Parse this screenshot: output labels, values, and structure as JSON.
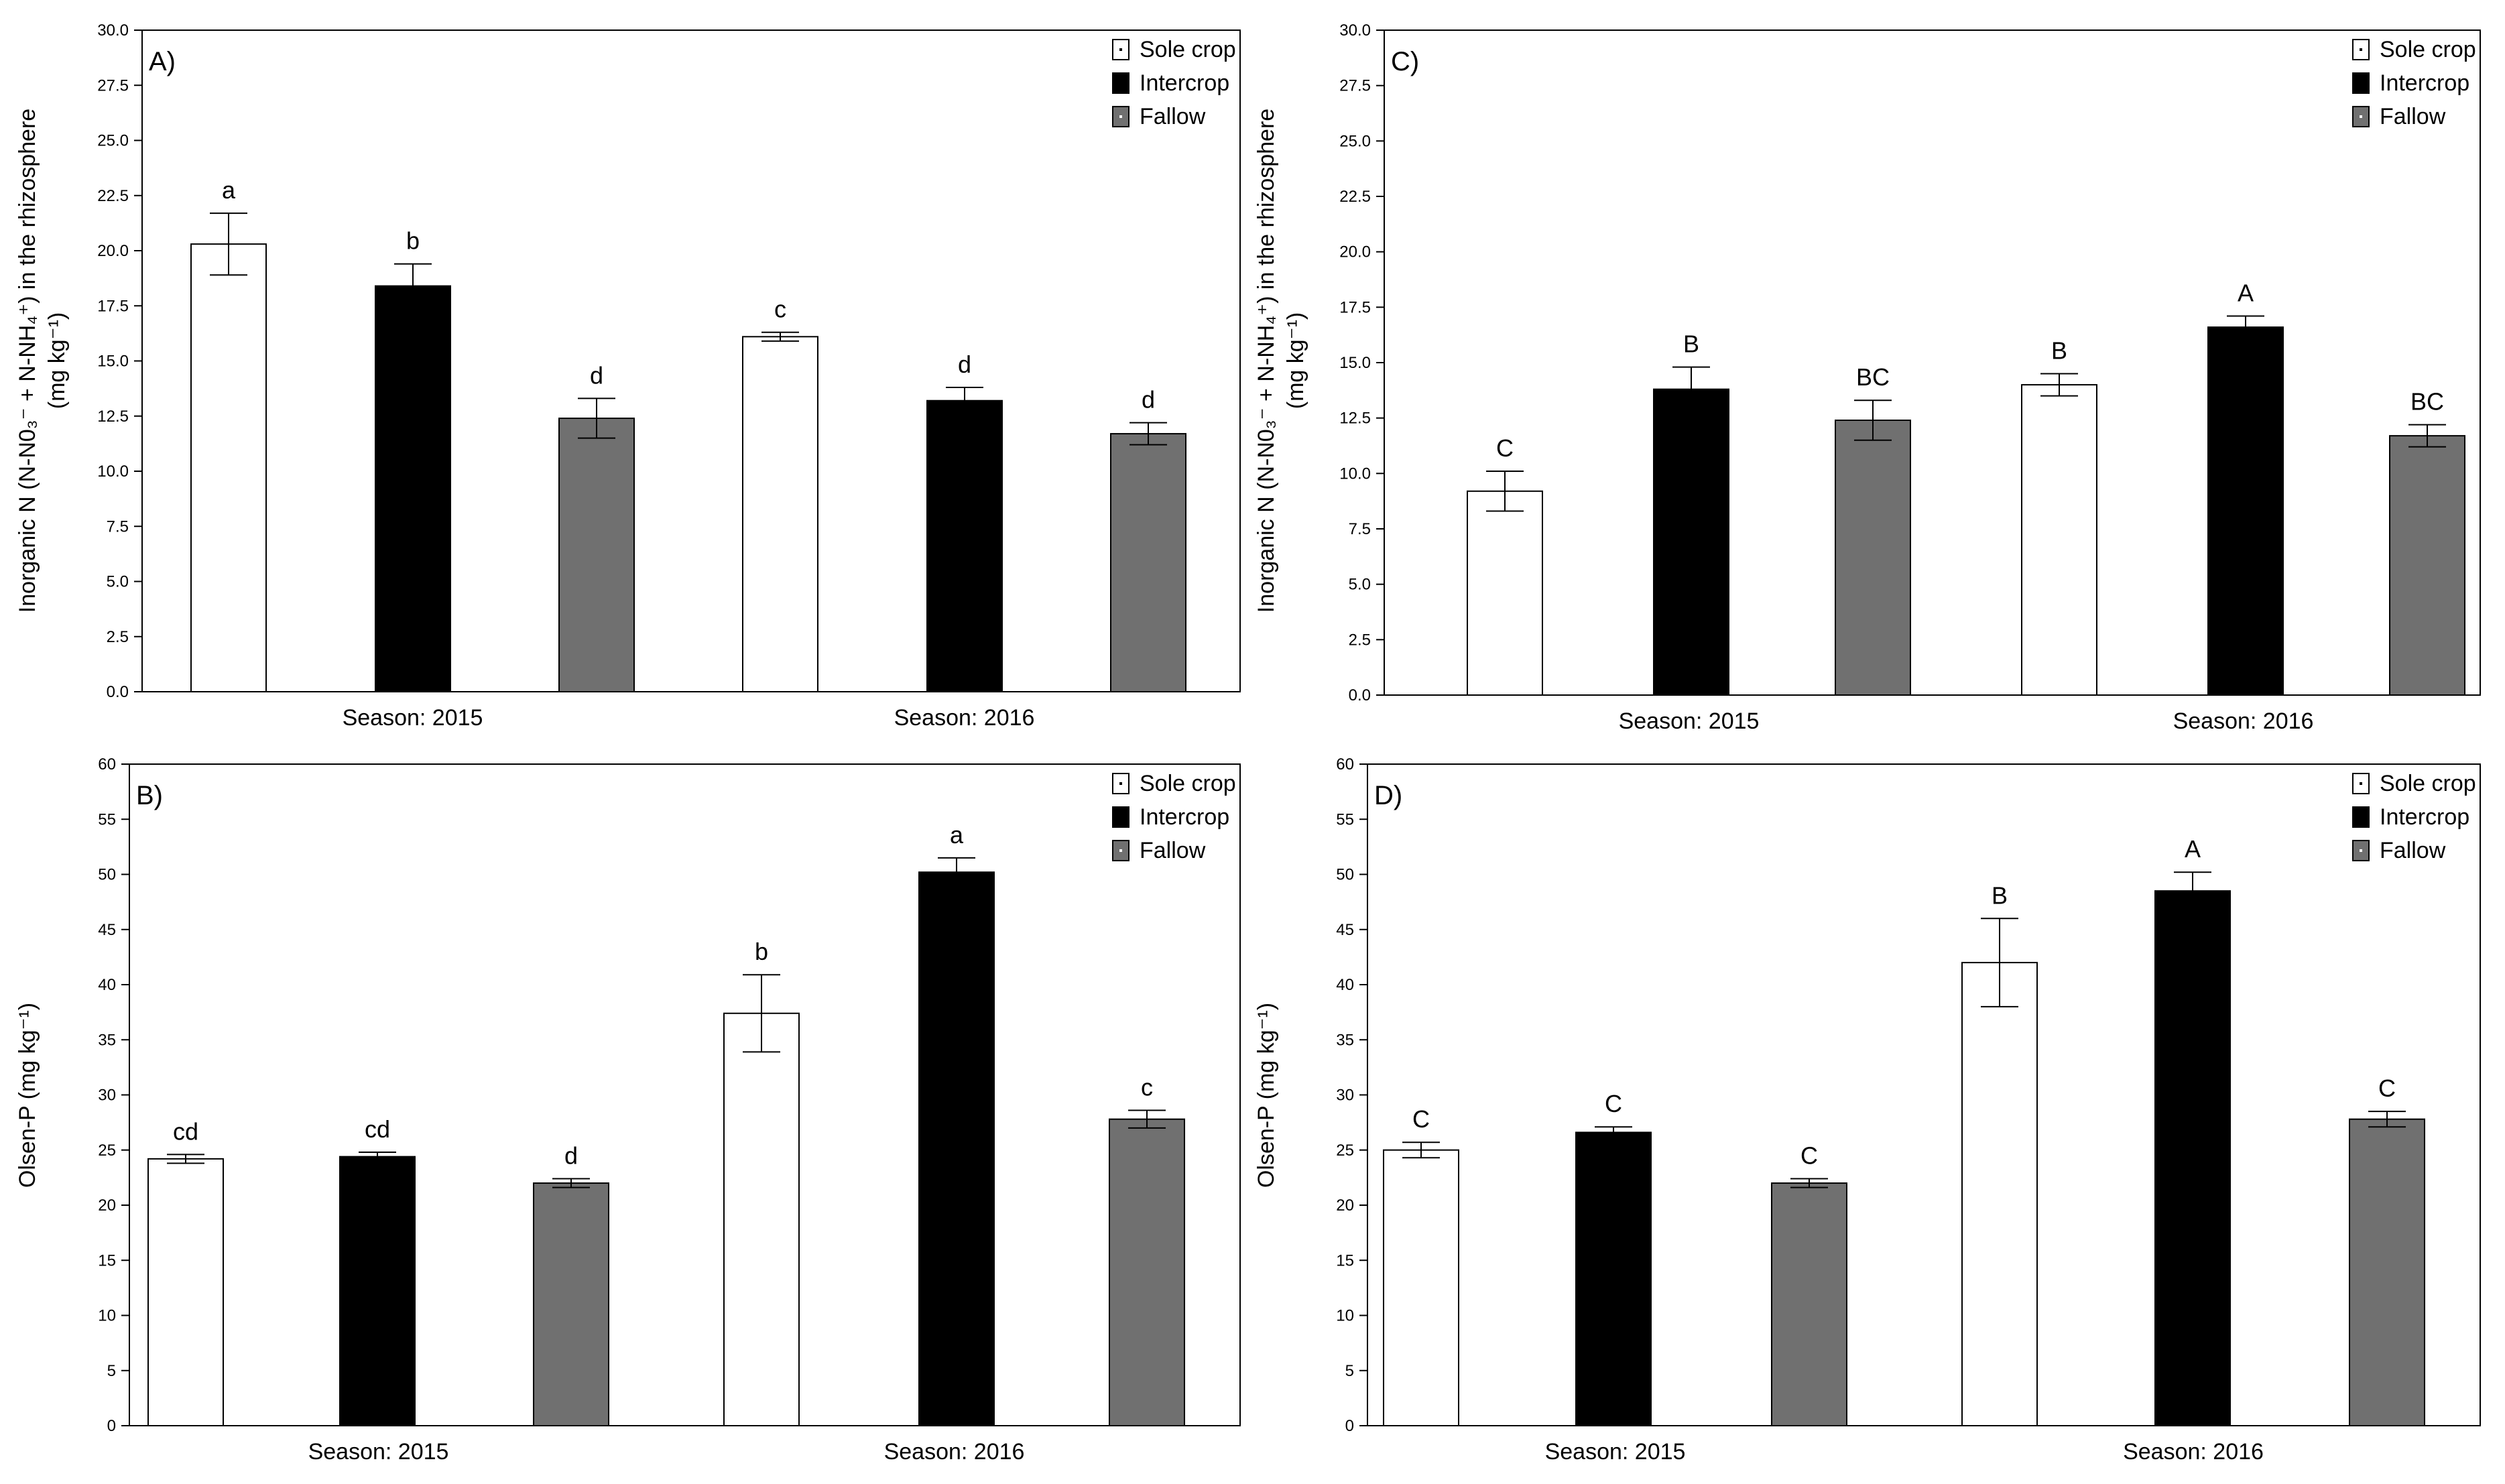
{
  "series_names": [
    "Sole crop",
    "Intercrop",
    "Fallow"
  ],
  "colors": {
    "sole": "#ffffff",
    "inter": "#000000",
    "fallow": "#707070",
    "axis": "#000000"
  },
  "chart_data": [
    {
      "id": "A",
      "panel_label": "A)",
      "type": "bar",
      "ylabel_main": "Inorganic N (N-N0₃⁻ + N-NH₄⁺) in the rhizosphere",
      "ylabel_unit": "(mg kg⁻¹)",
      "ylim": [
        0,
        30
      ],
      "yticks": [
        "0.0",
        "2.5",
        "5.0",
        "7.5",
        "10.0",
        "12.5",
        "15.0",
        "17.5",
        "20.0",
        "22.5",
        "25.0",
        "27.5",
        "30.0"
      ],
      "categories": [
        "Season: 2015",
        "Season: 2016"
      ],
      "series": [
        {
          "name": "Sole crop",
          "values": [
            20.3,
            16.1
          ],
          "errors": [
            1.4,
            0.2
          ],
          "letters": [
            "a",
            "c"
          ]
        },
        {
          "name": "Intercrop",
          "values": [
            18.4,
            13.2
          ],
          "errors": [
            1.0,
            0.6
          ],
          "letters": [
            "b",
            "d"
          ]
        },
        {
          "name": "Fallow",
          "values": [
            12.4,
            11.7
          ],
          "errors": [
            0.9,
            0.5
          ],
          "letters": [
            "d",
            "d"
          ]
        }
      ]
    },
    {
      "id": "C",
      "panel_label": "C)",
      "type": "bar",
      "ylabel_main": "Inorganic N (N-N0₃⁻ + N-NH₄⁺) in the rhizosphere",
      "ylabel_unit": "(mg kg⁻¹)",
      "ylim": [
        0,
        30
      ],
      "yticks": [
        "0.0",
        "2.5",
        "5.0",
        "7.5",
        "10.0",
        "12.5",
        "15.0",
        "17.5",
        "20.0",
        "22.5",
        "25.0",
        "27.5",
        "30.0"
      ],
      "categories": [
        "Season: 2015",
        "Season: 2016"
      ],
      "series": [
        {
          "name": "Sole crop",
          "values": [
            9.2,
            14.0
          ],
          "errors": [
            0.9,
            0.5
          ],
          "letters": [
            "C",
            "B"
          ]
        },
        {
          "name": "Intercrop",
          "values": [
            13.8,
            16.6
          ],
          "errors": [
            1.0,
            0.5
          ],
          "letters": [
            "B",
            "A"
          ]
        },
        {
          "name": "Fallow",
          "values": [
            12.4,
            11.7
          ],
          "errors": [
            0.9,
            0.5
          ],
          "letters": [
            "BC",
            "BC"
          ]
        }
      ]
    },
    {
      "id": "B",
      "panel_label": "B)",
      "type": "bar",
      "ylabel_main": "Olsen-P (mg kg⁻¹)",
      "ylabel_unit": "",
      "ylim": [
        0,
        60
      ],
      "yticks": [
        "0",
        "5",
        "10",
        "15",
        "20",
        "25",
        "30",
        "35",
        "40",
        "45",
        "50",
        "55",
        "60"
      ],
      "categories": [
        "Season: 2015",
        "Season: 2016"
      ],
      "series": [
        {
          "name": "Sole crop",
          "values": [
            24.2,
            37.4
          ],
          "errors": [
            0.4,
            3.5
          ],
          "letters": [
            "cd",
            "b"
          ]
        },
        {
          "name": "Intercrop",
          "values": [
            24.4,
            50.2
          ],
          "errors": [
            0.4,
            1.3
          ],
          "letters": [
            "cd",
            "a"
          ]
        },
        {
          "name": "Fallow",
          "values": [
            22.0,
            27.8
          ],
          "errors": [
            0.4,
            0.8
          ],
          "letters": [
            "d",
            "c"
          ]
        }
      ]
    },
    {
      "id": "D",
      "panel_label": "D)",
      "type": "bar",
      "ylabel_main": "Olsen-P (mg kg⁻¹)",
      "ylabel_unit": "",
      "ylim": [
        0,
        60
      ],
      "yticks": [
        "0",
        "5",
        "10",
        "15",
        "20",
        "25",
        "30",
        "35",
        "40",
        "45",
        "50",
        "55",
        "60"
      ],
      "categories": [
        "Season: 2015",
        "Season: 2016"
      ],
      "series": [
        {
          "name": "Sole crop",
          "values": [
            25.0,
            42.0
          ],
          "errors": [
            0.7,
            4.0
          ],
          "letters": [
            "C",
            "B"
          ]
        },
        {
          "name": "Intercrop",
          "values": [
            26.6,
            48.5
          ],
          "errors": [
            0.5,
            1.7
          ],
          "letters": [
            "C",
            "A"
          ]
        },
        {
          "name": "Fallow",
          "values": [
            22.0,
            27.8
          ],
          "errors": [
            0.4,
            0.7
          ],
          "letters": [
            "C",
            "C"
          ]
        }
      ]
    }
  ]
}
